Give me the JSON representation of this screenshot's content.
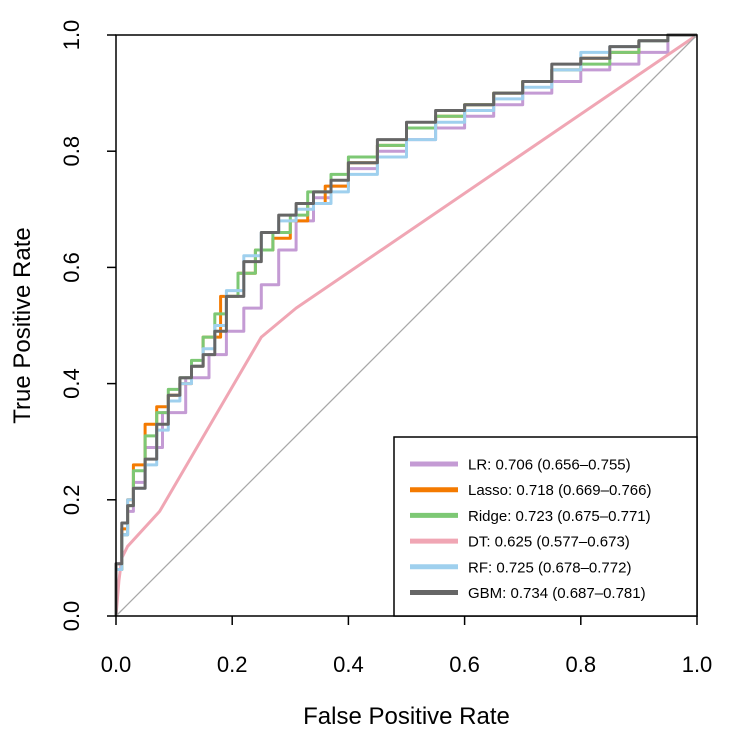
{
  "chart_data": {
    "type": "line",
    "title": "",
    "xlabel": "False Positive Rate",
    "ylabel": "True Positive Rate",
    "xlim": [
      0,
      1
    ],
    "ylim": [
      0,
      1
    ],
    "x_ticks": [
      "0.0",
      "0.2",
      "0.4",
      "0.6",
      "0.8",
      "1.0"
    ],
    "y_ticks": [
      "0.0",
      "0.2",
      "0.4",
      "0.6",
      "0.8",
      "1.0"
    ],
    "grid": false,
    "legend_position": "bottom-right",
    "diagonal_reference": true,
    "series": [
      {
        "name": "LR: 0.706 (0.656–0.755)",
        "color": "#c49bd4",
        "x": [
          0,
          0.01,
          0.02,
          0.03,
          0.05,
          0.08,
          0.12,
          0.16,
          0.19,
          0.22,
          0.25,
          0.28,
          0.31,
          0.34,
          0.37,
          0.4,
          0.45,
          0.5,
          0.55,
          0.6,
          0.65,
          0.7,
          0.75,
          0.8,
          0.85,
          0.9,
          0.95,
          1.0
        ],
        "y": [
          0,
          0.09,
          0.14,
          0.18,
          0.23,
          0.29,
          0.35,
          0.41,
          0.45,
          0.49,
          0.53,
          0.57,
          0.63,
          0.68,
          0.72,
          0.74,
          0.77,
          0.8,
          0.82,
          0.84,
          0.86,
          0.88,
          0.9,
          0.92,
          0.94,
          0.95,
          0.97,
          1.0
        ]
      },
      {
        "name": "Lasso: 0.718 (0.669–0.766)",
        "color": "#f47a00",
        "x": [
          0,
          0.01,
          0.02,
          0.03,
          0.05,
          0.07,
          0.09,
          0.11,
          0.13,
          0.15,
          0.18,
          0.21,
          0.24,
          0.27,
          0.3,
          0.33,
          0.36,
          0.4,
          0.45,
          0.5,
          0.55,
          0.6,
          0.65,
          0.7,
          0.75,
          0.8,
          0.85,
          0.9,
          0.95,
          1.0
        ],
        "y": [
          0,
          0.08,
          0.15,
          0.2,
          0.26,
          0.33,
          0.36,
          0.38,
          0.4,
          0.43,
          0.48,
          0.55,
          0.59,
          0.63,
          0.65,
          0.68,
          0.71,
          0.74,
          0.78,
          0.81,
          0.84,
          0.86,
          0.88,
          0.9,
          0.92,
          0.94,
          0.96,
          0.97,
          0.99,
          1.0
        ]
      },
      {
        "name": "Ridge: 0.723 (0.675–0.771)",
        "color": "#7dc874",
        "x": [
          0,
          0.01,
          0.02,
          0.03,
          0.05,
          0.07,
          0.09,
          0.11,
          0.13,
          0.15,
          0.17,
          0.19,
          0.21,
          0.24,
          0.27,
          0.3,
          0.33,
          0.37,
          0.4,
          0.45,
          0.5,
          0.55,
          0.6,
          0.65,
          0.7,
          0.75,
          0.8,
          0.85,
          0.9,
          0.95,
          1.0
        ],
        "y": [
          0,
          0.08,
          0.14,
          0.19,
          0.25,
          0.31,
          0.35,
          0.39,
          0.41,
          0.44,
          0.48,
          0.52,
          0.55,
          0.59,
          0.63,
          0.66,
          0.69,
          0.73,
          0.76,
          0.79,
          0.81,
          0.84,
          0.86,
          0.88,
          0.9,
          0.92,
          0.94,
          0.95,
          0.97,
          0.99,
          1.0
        ]
      },
      {
        "name": "DT: 0.625 (0.577–0.673)",
        "color": "#f0a6b4",
        "x": [
          0,
          0.005,
          0.01,
          0.02,
          0.075,
          0.25,
          0.31,
          1.0
        ],
        "y": [
          0,
          0.06,
          0.1,
          0.12,
          0.18,
          0.48,
          0.53,
          1.0
        ]
      },
      {
        "name": "RF: 0.725 (0.678–0.772)",
        "color": "#9fd0ee",
        "x": [
          0,
          0.01,
          0.02,
          0.03,
          0.05,
          0.07,
          0.09,
          0.11,
          0.13,
          0.15,
          0.17,
          0.19,
          0.22,
          0.25,
          0.28,
          0.31,
          0.34,
          0.37,
          0.4,
          0.45,
          0.5,
          0.55,
          0.6,
          0.65,
          0.7,
          0.75,
          0.8,
          0.85,
          0.9,
          0.95,
          1.0
        ],
        "y": [
          0,
          0.08,
          0.14,
          0.2,
          0.22,
          0.26,
          0.32,
          0.37,
          0.4,
          0.43,
          0.46,
          0.5,
          0.56,
          0.62,
          0.66,
          0.68,
          0.7,
          0.71,
          0.73,
          0.76,
          0.79,
          0.82,
          0.85,
          0.87,
          0.89,
          0.91,
          0.94,
          0.97,
          0.98,
          0.99,
          1.0
        ]
      },
      {
        "name": "GBM: 0.734 (0.687–0.781)",
        "color": "#666666",
        "x": [
          0,
          0.01,
          0.02,
          0.03,
          0.05,
          0.07,
          0.09,
          0.11,
          0.13,
          0.15,
          0.17,
          0.19,
          0.22,
          0.25,
          0.28,
          0.31,
          0.34,
          0.37,
          0.4,
          0.45,
          0.5,
          0.55,
          0.6,
          0.65,
          0.7,
          0.75,
          0.8,
          0.85,
          0.9,
          0.95,
          1.0
        ],
        "y": [
          0,
          0.09,
          0.16,
          0.19,
          0.22,
          0.27,
          0.33,
          0.38,
          0.41,
          0.43,
          0.45,
          0.49,
          0.55,
          0.61,
          0.66,
          0.69,
          0.71,
          0.73,
          0.75,
          0.78,
          0.82,
          0.85,
          0.87,
          0.88,
          0.9,
          0.92,
          0.95,
          0.96,
          0.98,
          0.99,
          1.0
        ]
      }
    ]
  }
}
